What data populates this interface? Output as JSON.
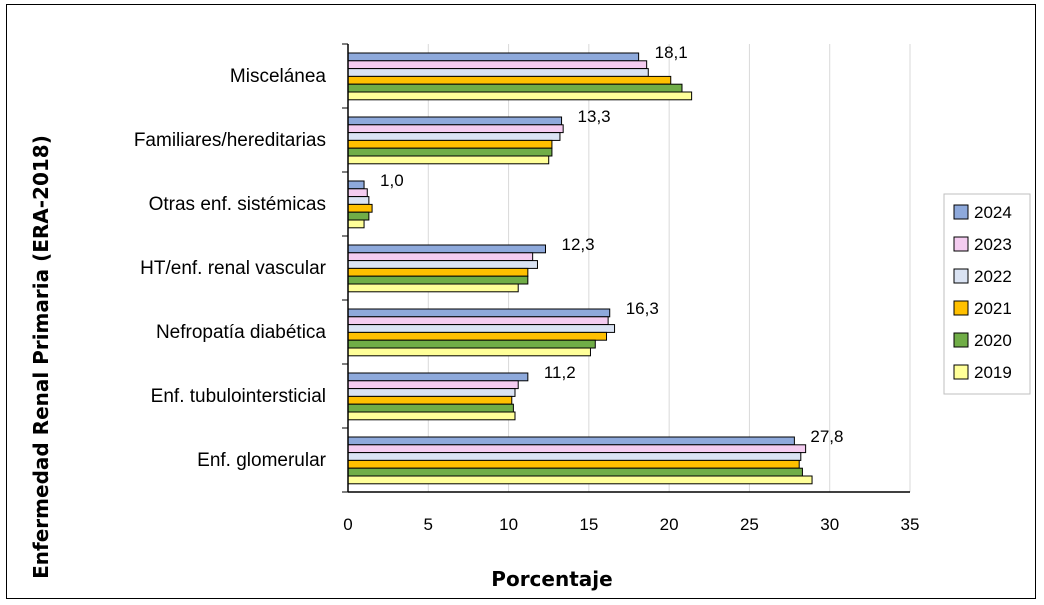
{
  "chart_data": {
    "type": "bar",
    "orientation": "horizontal",
    "categories": [
      "Miscelánea",
      "Familiares/hereditarias",
      "Otras enf. sistémicas",
      "HT/enf. renal vascular",
      "Nefropatía diabética",
      "Enf. tubulointersticial",
      "Enf. glomerular"
    ],
    "series": [
      {
        "name": "2024",
        "color": "#8EA9DB",
        "values": [
          18.1,
          13.3,
          1.0,
          12.3,
          16.3,
          11.2,
          27.8
        ]
      },
      {
        "name": "2023",
        "color": "#F4CCF0",
        "values": [
          18.6,
          13.4,
          1.2,
          11.5,
          16.2,
          10.6,
          28.5
        ]
      },
      {
        "name": "2022",
        "color": "#DAE3F3",
        "values": [
          18.7,
          13.2,
          1.3,
          11.8,
          16.6,
          10.4,
          28.2
        ]
      },
      {
        "name": "2021",
        "color": "#FFC000",
        "values": [
          20.1,
          12.7,
          1.5,
          11.2,
          16.1,
          10.2,
          28.1
        ]
      },
      {
        "name": "2020",
        "color": "#70AD47",
        "values": [
          20.8,
          12.7,
          1.3,
          11.2,
          15.4,
          10.3,
          28.3
        ]
      },
      {
        "name": "2019",
        "color": "#FFFF99",
        "values": [
          21.4,
          12.5,
          1.0,
          10.6,
          15.1,
          10.4,
          28.9
        ]
      }
    ],
    "data_labels": [
      "18,1",
      "13,3",
      "1,0",
      "12,3",
      "16,3",
      "11,2",
      "27,8"
    ],
    "xlim": [
      0,
      35
    ],
    "xticks": [
      "0",
      "5",
      "10",
      "15",
      "20",
      "25",
      "30",
      "35"
    ],
    "xlabel": "Porcentaje",
    "ylabel": "Enfermedad Renal Primaria (ERA-2018)",
    "grid": "vertical",
    "legend_position": "right",
    "title": ""
  }
}
